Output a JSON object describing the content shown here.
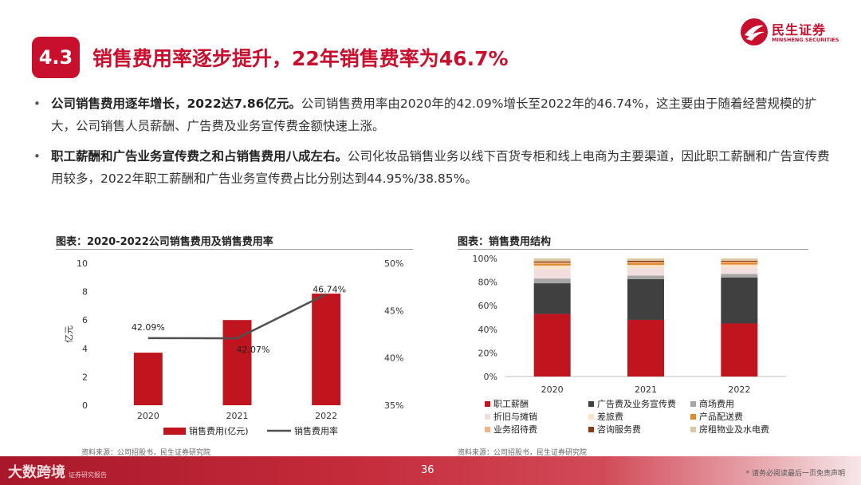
{
  "header": {
    "section_number": "4.3",
    "title": "销售费用率逐步提升，22年销售费率为46.7%",
    "logo_cn": "民生证券",
    "logo_en": "MINSHENG SECURITIES"
  },
  "bullets": [
    {
      "bold": "公司销售费用逐年增长，2022达7.86亿元。",
      "text": "公司销售费用率由2020年的42.09%增长至2022年的46.74%，这主要由于随着经营规模的扩大，公司销售人员薪酬、广告费及业务宣传费金额快速上涨。"
    },
    {
      "bold": "职工薪酬和广告业务宣传费之和占销售费用八成左右。",
      "text": "公司化妆品销售业务以线下百货专柜和线上电商为主要渠道，因此职工薪酬和广告宣传费用较多，2022年职工薪酬和广告业务宣传费占比分别达到44.95%/38.85%。"
    }
  ],
  "chart_left_title": "图表：2020-2022公司销售费用及销售费用率",
  "chart_right_title": "图表：销售费用结构",
  "source_left": "资料来源：公司招股书，民生证券研究院",
  "source_right": "资料来源：公司招股书，民生证券研究院",
  "chart_data": [
    {
      "type": "bar",
      "title": "图表：2020-2022公司销售费用及销售费用率",
      "categories": [
        "2020",
        "2021",
        "2022"
      ],
      "ylabel": "亿元",
      "ylim": [
        0,
        10
      ],
      "yticks": [
        "0",
        "2",
        "4",
        "6",
        "8",
        "10"
      ],
      "y2lim": [
        35,
        50
      ],
      "y2ticks": [
        "35%",
        "40%",
        "45%",
        "50%"
      ],
      "series": [
        {
          "name": "销售费用(亿元)",
          "type": "bar",
          "color": "#c0141f",
          "values": [
            3.7,
            6.0,
            7.86
          ]
        },
        {
          "name": "销售费用率",
          "type": "line",
          "axis": "right",
          "color": "#505050",
          "values": [
            42.09,
            42.07,
            46.74
          ],
          "labels": [
            "42.09%",
            "42.07%",
            "46.74%"
          ]
        }
      ]
    },
    {
      "type": "bar",
      "stacked": true,
      "title": "图表：销售费用结构",
      "categories": [
        "2020",
        "2021",
        "2022"
      ],
      "ylim": [
        0,
        100
      ],
      "yticks": [
        "0%",
        "20%",
        "40%",
        "60%",
        "80%",
        "100%"
      ],
      "series": [
        {
          "name": "职工薪酬",
          "color": "#c0141f",
          "values": [
            53.0,
            48.0,
            44.95
          ]
        },
        {
          "name": "广告费及业务宣传费",
          "color": "#404040",
          "values": [
            26.0,
            34.5,
            38.85
          ]
        },
        {
          "name": "商场费用",
          "color": "#a6a6a6",
          "values": [
            4.0,
            3.0,
            3.0
          ]
        },
        {
          "name": "折旧与摊销",
          "color": "#f2dede",
          "values": [
            8.0,
            6.0,
            5.5
          ]
        },
        {
          "name": "差旅费",
          "color": "#fbe3c8",
          "values": [
            3.0,
            3.0,
            2.5
          ]
        },
        {
          "name": "产品配送费",
          "color": "#e08a2e",
          "values": [
            1.5,
            1.5,
            1.5
          ]
        },
        {
          "name": "业务招待费",
          "color": "#f4b183",
          "values": [
            1.0,
            1.0,
            1.0
          ]
        },
        {
          "name": "咨询服务费",
          "color": "#8b3a12",
          "values": [
            1.0,
            1.0,
            0.7
          ]
        },
        {
          "name": "房租物业及水电费",
          "color": "#d9c9a3",
          "values": [
            2.5,
            2.0,
            2.0
          ]
        }
      ]
    }
  ],
  "footer": {
    "watermark": "大数跨境",
    "watermark_small": "证券研究报告",
    "page_number": "36",
    "disclaimer": "* 请务必阅读最后一页免责声明"
  }
}
